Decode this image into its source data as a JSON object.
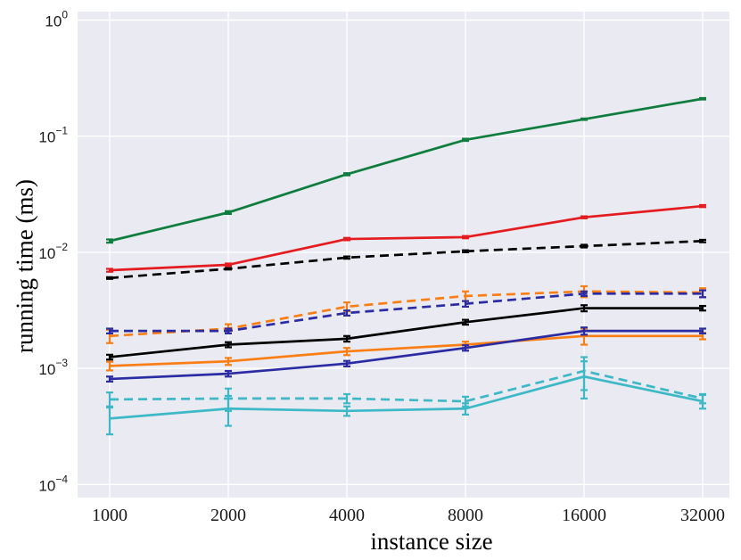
{
  "chart_data": {
    "type": "line",
    "title": "",
    "xlabel": "instance size",
    "ylabel": "running time (ms)",
    "x_scale": "log2",
    "y_scale": "log10",
    "grid": true,
    "legend_position": "none",
    "background_color": "#eaeaf2",
    "grid_color": "#ffffff",
    "xlim": [
      833,
      37600
    ],
    "ylim": [
      0.0001,
      1
    ],
    "x": [
      1000,
      2000,
      4000,
      8000,
      16000,
      32000
    ],
    "x_tick_labels": [
      "1000",
      "2000",
      "4000",
      "8000",
      "16000",
      "32000"
    ],
    "y_tick_exponents": [
      0,
      -1,
      -2,
      -3,
      -4
    ],
    "y_tick_labels": [
      {
        "base": "10",
        "exp": "0"
      },
      {
        "base": "10",
        "exp": "−1"
      },
      {
        "base": "10",
        "exp": "−2"
      },
      {
        "base": "10",
        "exp": "−3"
      },
      {
        "base": "10",
        "exp": "−4"
      }
    ],
    "series": [
      {
        "name": "green-solid",
        "color": "#0e7d3e",
        "dash": false,
        "values": [
          0.0125,
          0.022,
          0.047,
          0.093,
          0.14,
          0.21
        ],
        "err": [
          0.0004,
          0.0006,
          0.001,
          0.002,
          0.002,
          0.003
        ]
      },
      {
        "name": "red-solid",
        "color": "#e41b1f",
        "dash": false,
        "values": [
          0.007,
          0.0078,
          0.013,
          0.0135,
          0.02,
          0.025
        ],
        "err": [
          0.0002,
          0.0002,
          0.0003,
          0.0003,
          0.0004,
          0.0005
        ]
      },
      {
        "name": "black-dashed",
        "color": "#000000",
        "dash": true,
        "values": [
          0.006,
          0.0072,
          0.009,
          0.0102,
          0.0113,
          0.0125
        ],
        "err": [
          0.0001,
          0.0001,
          0.0002,
          0.0002,
          0.0003,
          0.0003
        ]
      },
      {
        "name": "orange-dashed",
        "color": "#fb7e14",
        "dash": true,
        "values": [
          0.0019,
          0.0022,
          0.0034,
          0.0042,
          0.0046,
          0.0045
        ],
        "err": [
          0.00025,
          0.0002,
          0.0003,
          0.0004,
          0.0005,
          0.0004
        ]
      },
      {
        "name": "blue-dashed",
        "color": "#2b2ba3",
        "dash": true,
        "values": [
          0.0021,
          0.0021,
          0.003,
          0.0036,
          0.0044,
          0.0044
        ],
        "err": [
          0.0001,
          0.0001,
          0.00015,
          0.0002,
          0.0002,
          0.0003
        ]
      },
      {
        "name": "black-solid",
        "color": "#000000",
        "dash": false,
        "values": [
          0.00125,
          0.0016,
          0.0018,
          0.0025,
          0.0033,
          0.0033
        ],
        "err": [
          6e-05,
          8e-05,
          0.0001,
          0.00012,
          0.0002,
          0.00015
        ]
      },
      {
        "name": "orange-solid",
        "color": "#fb7e14",
        "dash": false,
        "values": [
          0.00105,
          0.00115,
          0.0014,
          0.0016,
          0.0019,
          0.0019
        ],
        "err": [
          9e-05,
          8e-05,
          0.0001,
          0.0001,
          0.0003,
          0.00012
        ]
      },
      {
        "name": "blue-solid",
        "color": "#2b2ba3",
        "dash": false,
        "values": [
          0.00081,
          0.0009,
          0.0011,
          0.0015,
          0.0021,
          0.0021
        ],
        "err": [
          4e-05,
          5e-05,
          6e-05,
          8e-05,
          0.00015,
          0.0001
        ]
      },
      {
        "name": "cyan-solid",
        "color": "#3cb8c6",
        "dash": false,
        "values": [
          0.00037,
          0.00045,
          0.00043,
          0.00045,
          0.00085,
          0.00052
        ],
        "err": [
          0.0001,
          0.00013,
          4e-05,
          5e-05,
          0.0003,
          7e-05
        ]
      },
      {
        "name": "cyan-dashed",
        "color": "#3cb8c6",
        "dash": true,
        "values": [
          0.00054,
          0.00055,
          0.00055,
          0.00052,
          0.00095,
          0.00055
        ],
        "err": [
          8e-05,
          0.00012,
          5e-05,
          5e-05,
          0.0003,
          5e-05
        ]
      }
    ]
  }
}
